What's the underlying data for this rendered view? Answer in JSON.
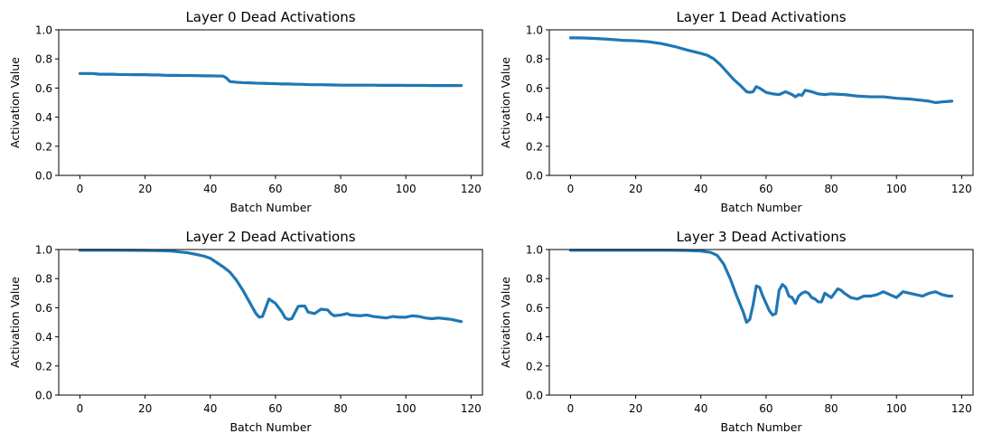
{
  "chart_data": [
    {
      "type": "line",
      "title": "Layer 0 Dead Activations",
      "xlabel": "Batch Number",
      "ylabel": "Activation Value",
      "xlim": [
        -6.5,
        123.5
      ],
      "ylim": [
        0,
        1
      ],
      "xticks": [
        0,
        20,
        40,
        60,
        80,
        100,
        120
      ],
      "yticks": [
        0.0,
        0.2,
        0.4,
        0.6,
        0.8,
        1.0
      ],
      "color": "#1f77b4",
      "x": [
        0,
        2,
        4,
        6,
        8,
        10,
        12,
        14,
        16,
        18,
        20,
        22,
        24,
        26,
        28,
        30,
        32,
        34,
        36,
        38,
        40,
        42,
        44,
        45,
        46,
        48,
        50,
        52,
        54,
        56,
        58,
        60,
        62,
        64,
        66,
        68,
        70,
        72,
        74,
        76,
        78,
        80,
        82,
        84,
        86,
        88,
        90,
        92,
        94,
        96,
        98,
        100,
        102,
        104,
        106,
        108,
        110,
        112,
        114,
        116,
        117
      ],
      "y": [
        0.7,
        0.7,
        0.7,
        0.695,
        0.695,
        0.695,
        0.693,
        0.693,
        0.692,
        0.692,
        0.692,
        0.69,
        0.69,
        0.688,
        0.687,
        0.687,
        0.686,
        0.686,
        0.685,
        0.684,
        0.684,
        0.683,
        0.682,
        0.668,
        0.645,
        0.64,
        0.637,
        0.636,
        0.634,
        0.633,
        0.631,
        0.63,
        0.628,
        0.628,
        0.626,
        0.626,
        0.624,
        0.623,
        0.623,
        0.622,
        0.621,
        0.62,
        0.62,
        0.62,
        0.62,
        0.62,
        0.62,
        0.619,
        0.619,
        0.619,
        0.619,
        0.618,
        0.618,
        0.618,
        0.618,
        0.617,
        0.617,
        0.617,
        0.617,
        0.617,
        0.617
      ]
    },
    {
      "type": "line",
      "title": "Layer 1 Dead Activations",
      "xlabel": "Batch Number",
      "ylabel": "Activation Value",
      "xlim": [
        -6.5,
        123.5
      ],
      "ylim": [
        0,
        1
      ],
      "xticks": [
        0,
        20,
        40,
        60,
        80,
        100,
        120
      ],
      "yticks": [
        0.0,
        0.2,
        0.4,
        0.6,
        0.8,
        1.0
      ],
      "color": "#1f77b4",
      "x": [
        0,
        4,
        8,
        12,
        16,
        20,
        24,
        28,
        32,
        36,
        40,
        42,
        44,
        46,
        48,
        50,
        52,
        54,
        55,
        56,
        57,
        58,
        60,
        62,
        64,
        66,
        68,
        69,
        70,
        71,
        72,
        74,
        76,
        78,
        80,
        84,
        88,
        92,
        96,
        100,
        104,
        106,
        108,
        110,
        112,
        114,
        117
      ],
      "y": [
        0.945,
        0.944,
        0.94,
        0.935,
        0.928,
        0.925,
        0.918,
        0.905,
        0.885,
        0.86,
        0.838,
        0.825,
        0.8,
        0.76,
        0.71,
        0.66,
        0.62,
        0.575,
        0.57,
        0.575,
        0.61,
        0.6,
        0.57,
        0.56,
        0.555,
        0.575,
        0.555,
        0.54,
        0.555,
        0.55,
        0.585,
        0.575,
        0.56,
        0.555,
        0.56,
        0.555,
        0.545,
        0.54,
        0.54,
        0.53,
        0.525,
        0.52,
        0.515,
        0.51,
        0.5,
        0.505,
        0.51
      ]
    },
    {
      "type": "line",
      "title": "Layer 2 Dead Activations",
      "xlabel": "Batch Number",
      "ylabel": "Activation Value",
      "xlim": [
        -6.5,
        123.5
      ],
      "ylim": [
        0,
        1
      ],
      "xticks": [
        0,
        20,
        40,
        60,
        80,
        100,
        120
      ],
      "yticks": [
        0.0,
        0.2,
        0.4,
        0.6,
        0.8,
        1.0
      ],
      "color": "#1f77b4",
      "x": [
        0,
        10,
        20,
        25,
        28,
        30,
        33,
        36,
        38,
        40,
        42,
        44,
        46,
        48,
        50,
        52,
        54,
        55,
        56,
        57,
        58,
        60,
        62,
        63,
        64,
        65,
        67,
        68,
        69,
        70,
        71,
        72,
        74,
        76,
        77,
        78,
        80,
        82,
        83,
        84,
        86,
        88,
        90,
        92,
        94,
        96,
        98,
        100,
        102,
        104,
        106,
        108,
        110,
        112,
        114,
        116,
        117
      ],
      "y": [
        0.995,
        0.995,
        0.994,
        0.992,
        0.99,
        0.985,
        0.978,
        0.965,
        0.955,
        0.94,
        0.91,
        0.88,
        0.845,
        0.79,
        0.72,
        0.64,
        0.56,
        0.535,
        0.54,
        0.6,
        0.66,
        0.63,
        0.57,
        0.53,
        0.52,
        0.525,
        0.61,
        0.612,
        0.612,
        0.57,
        0.565,
        0.56,
        0.59,
        0.585,
        0.56,
        0.545,
        0.55,
        0.56,
        0.55,
        0.548,
        0.545,
        0.55,
        0.54,
        0.535,
        0.53,
        0.54,
        0.535,
        0.535,
        0.545,
        0.54,
        0.53,
        0.525,
        0.53,
        0.525,
        0.52,
        0.51,
        0.505
      ]
    },
    {
      "type": "line",
      "title": "Layer 3 Dead Activations",
      "xlabel": "Batch Number",
      "ylabel": "Activation Value",
      "xlim": [
        -6.5,
        123.5
      ],
      "ylim": [
        0,
        1
      ],
      "xticks": [
        0,
        20,
        40,
        60,
        80,
        100,
        120
      ],
      "yticks": [
        0.0,
        0.2,
        0.4,
        0.6,
        0.8,
        1.0
      ],
      "color": "#1f77b4",
      "x": [
        0,
        10,
        20,
        30,
        35,
        40,
        43,
        45,
        47,
        49,
        51,
        53,
        54,
        55,
        56,
        57,
        58,
        59,
        61,
        62,
        63,
        64,
        65,
        66,
        67,
        68,
        69,
        70,
        71,
        72,
        73,
        74,
        75,
        76,
        77,
        78,
        80,
        81,
        82,
        83,
        84,
        86,
        88,
        90,
        92,
        94,
        96,
        97,
        98,
        100,
        102,
        104,
        106,
        108,
        110,
        112,
        114,
        116,
        117
      ],
      "y": [
        0.995,
        0.995,
        0.995,
        0.995,
        0.994,
        0.99,
        0.98,
        0.96,
        0.9,
        0.8,
        0.68,
        0.57,
        0.5,
        0.52,
        0.62,
        0.75,
        0.74,
        0.68,
        0.58,
        0.55,
        0.56,
        0.72,
        0.76,
        0.74,
        0.68,
        0.67,
        0.63,
        0.68,
        0.7,
        0.71,
        0.7,
        0.67,
        0.66,
        0.64,
        0.64,
        0.7,
        0.67,
        0.7,
        0.73,
        0.72,
        0.7,
        0.67,
        0.66,
        0.68,
        0.68,
        0.69,
        0.71,
        0.7,
        0.69,
        0.67,
        0.71,
        0.7,
        0.69,
        0.68,
        0.7,
        0.71,
        0.69,
        0.68,
        0.68
      ]
    }
  ]
}
